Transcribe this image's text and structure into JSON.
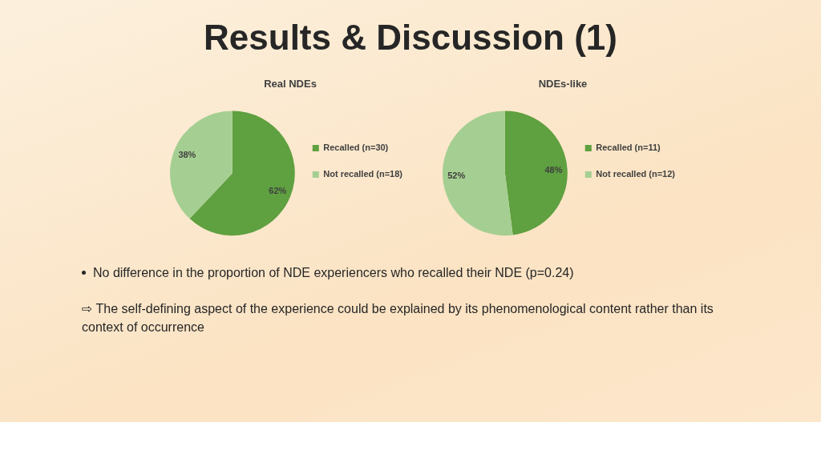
{
  "chart_data": [
    {
      "type": "other",
      "title": "Results & Discussion (1)"
    },
    {
      "type": "pie",
      "title": "Real NDEs",
      "categories": [
        "Recalled (n=30)",
        "Not recalled (n=18)"
      ],
      "values": [
        62,
        38
      ],
      "colors": [
        "#5fa040",
        "#a5cf92"
      ],
      "value_labels": [
        "62%",
        "38%"
      ],
      "legend": "right"
    },
    {
      "type": "pie",
      "title": "NDEs-like",
      "categories": [
        "Recalled (n=11)",
        "Not recalled (n=12)"
      ],
      "values": [
        48,
        52
      ],
      "colors": [
        "#5fa040",
        "#a5cf92"
      ],
      "value_labels": [
        "48%",
        "52%"
      ],
      "legend": "right"
    },
    {
      "type": "other",
      "annotations": [
        "No difference in the proportion of NDE experiencers who recalled their NDE (p=0.24)",
        "⇨ The self-defining aspect of the experience could be explained by its phenomenological content rather than its context of occurrence"
      ]
    }
  ]
}
